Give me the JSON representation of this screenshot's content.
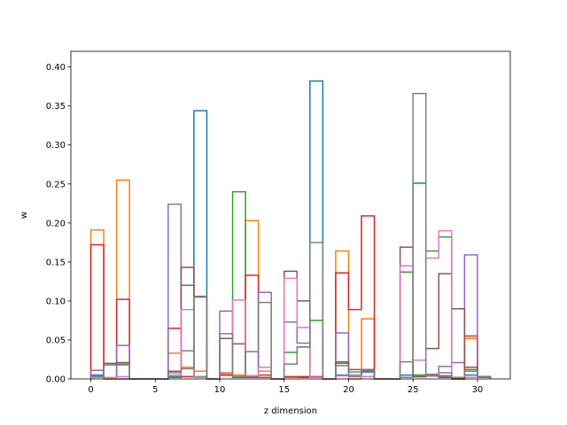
{
  "chart_data": {
    "type": "histogram-step",
    "xlabel": "z dimension",
    "ylabel": "w",
    "xlim": [
      -1.55,
      32.55
    ],
    "ylim": [
      0,
      0.42
    ],
    "xticks": [
      0,
      5,
      10,
      15,
      20,
      25,
      30
    ],
    "yticks": [
      0.0,
      0.05,
      0.1,
      0.15,
      0.2,
      0.25,
      0.3,
      0.35,
      0.4
    ],
    "ytick_labels": [
      "0.00",
      "0.05",
      "0.10",
      "0.15",
      "0.20",
      "0.25",
      "0.30",
      "0.35",
      "0.40"
    ],
    "bin_edges": [
      0,
      1,
      2,
      3,
      4,
      5,
      6,
      7,
      8,
      9,
      10,
      11,
      12,
      13,
      14,
      15,
      16,
      17,
      18,
      19,
      20,
      21,
      22,
      23,
      24,
      25,
      26,
      27,
      28,
      29,
      30,
      31
    ],
    "series": [
      {
        "color": "#1f77b4",
        "values": [
          0.005,
          0,
          0,
          0,
          0,
          0,
          0.003,
          0.003,
          0.344,
          0,
          0.005,
          0.002,
          0.004,
          0.002,
          0,
          0.002,
          0.002,
          0.382,
          0,
          0.005,
          0.003,
          0.009,
          0,
          0,
          0.005,
          0.251,
          0.004,
          0.004,
          0,
          0.005,
          0.003
        ]
      },
      {
        "color": "#ff7f0e",
        "values": [
          0.191,
          0,
          0.255,
          0,
          0,
          0,
          0.033,
          0.015,
          0.01,
          0,
          0.008,
          0.005,
          0.203,
          0.01,
          0,
          0.002,
          0.003,
          0.002,
          0,
          0.164,
          0,
          0.077,
          0,
          0,
          0.002,
          0.003,
          0.004,
          0.002,
          0,
          0.052,
          0.002
        ]
      },
      {
        "color": "#2ca02c",
        "values": [
          0.003,
          0.018,
          0.019,
          0,
          0,
          0,
          0.002,
          0.12,
          0.003,
          0,
          0.007,
          0.24,
          0.002,
          0.002,
          0,
          0.034,
          0.041,
          0.075,
          0,
          0.02,
          0.005,
          0.01,
          0,
          0,
          0.137,
          0.005,
          0.164,
          0.182,
          0,
          0.012,
          0.002
        ]
      },
      {
        "color": "#d62728",
        "values": [
          0.172,
          0.002,
          0.102,
          0,
          0,
          0,
          0.065,
          0.003,
          0.002,
          0,
          0.005,
          0.003,
          0.133,
          0.005,
          0,
          0.003,
          0.003,
          0.003,
          0,
          0.136,
          0.089,
          0.209,
          0,
          0,
          0.002,
          0.003,
          0.004,
          0.002,
          0,
          0.055,
          0.002
        ]
      },
      {
        "color": "#9467bd",
        "values": [
          0.011,
          0.002,
          0.043,
          0,
          0,
          0,
          0.224,
          0.036,
          0.002,
          0,
          0.087,
          0.003,
          0.003,
          0.111,
          0,
          0.073,
          0.046,
          0.002,
          0,
          0.059,
          0.004,
          0.003,
          0,
          0,
          0.002,
          0.003,
          0.006,
          0.016,
          0.021,
          0.159,
          0.003
        ]
      },
      {
        "color": "#8c564b",
        "values": [
          0.002,
          0.02,
          0.021,
          0,
          0,
          0,
          0.01,
          0.143,
          0.105,
          0,
          0.052,
          0.045,
          0.002,
          0.002,
          0,
          0.138,
          0.1,
          0.002,
          0,
          0.022,
          0.012,
          0.012,
          0,
          0,
          0.169,
          0.003,
          0.039,
          0.135,
          0.09,
          0.015,
          0.003
        ]
      },
      {
        "color": "#e377c2",
        "values": [
          0.002,
          0.002,
          0.003,
          0,
          0,
          0,
          0.005,
          0.089,
          0.002,
          0,
          0.007,
          0.101,
          0.004,
          0.015,
          0,
          0.129,
          0.066,
          0.002,
          0,
          0.004,
          0.004,
          0.003,
          0,
          0,
          0.145,
          0.024,
          0.155,
          0.19,
          0.002,
          0.002,
          0.002
        ]
      },
      {
        "color": "#7f7f7f",
        "values": [
          0.003,
          0.018,
          0.018,
          0,
          0,
          0,
          0.008,
          0.013,
          0.106,
          0,
          0.058,
          0.003,
          0.035,
          0.098,
          0,
          0.019,
          0.041,
          0.175,
          0,
          0.017,
          0.009,
          0.011,
          0,
          0,
          0.022,
          0.366,
          0.004,
          0.008,
          0.002,
          0.01,
          0.002
        ]
      }
    ]
  }
}
